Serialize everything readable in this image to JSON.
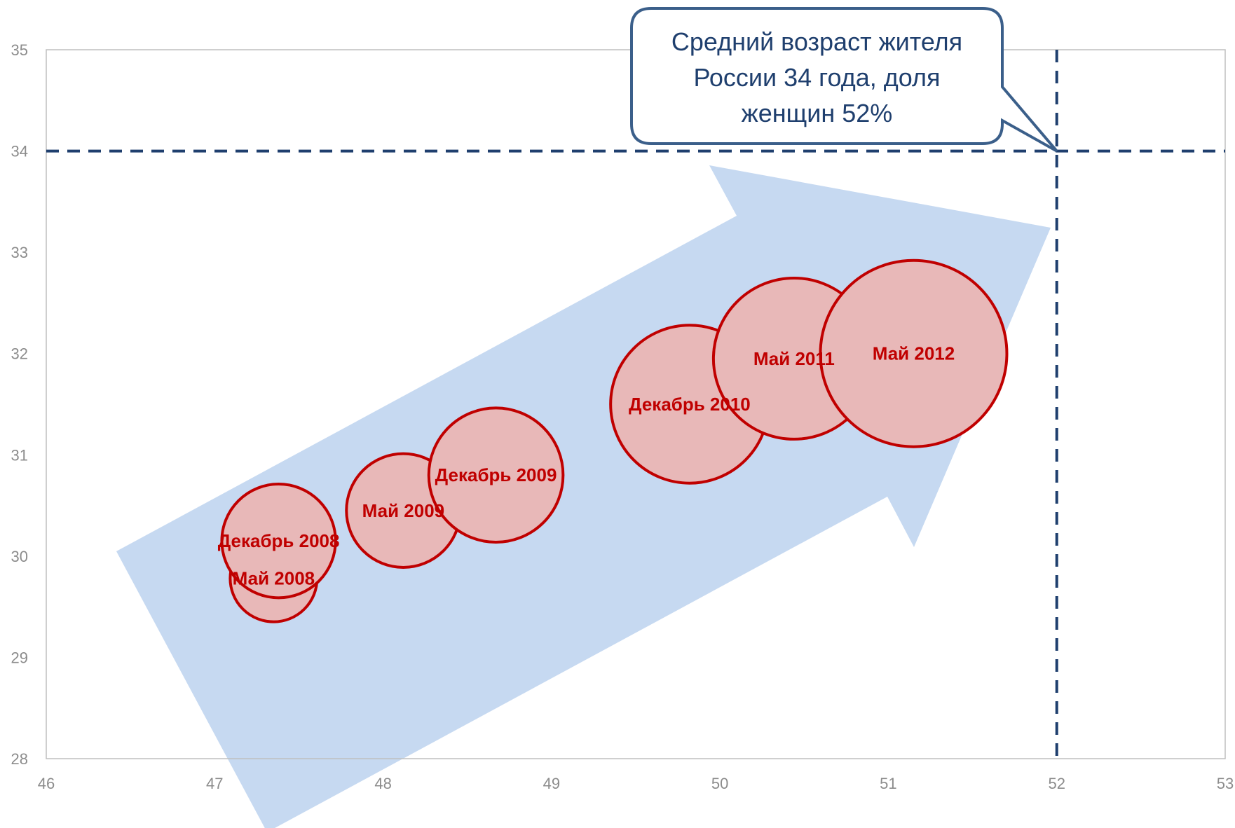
{
  "chart_data": {
    "type": "bubble",
    "xlim": [
      46,
      53
    ],
    "ylim": [
      28,
      35
    ],
    "x_ticks": [
      46,
      47,
      48,
      49,
      50,
      51,
      52,
      53
    ],
    "y_ticks": [
      28,
      29,
      30,
      31,
      32,
      33,
      34,
      35
    ],
    "grid": false,
    "series": [
      {
        "points": [
          {
            "label": "Май 2008",
            "x": 47.35,
            "y": 29.78,
            "size": 0.55
          },
          {
            "label": "Декабрь 2008",
            "x": 47.38,
            "y": 30.15,
            "size": 0.72
          },
          {
            "label": "Май 2009",
            "x": 48.12,
            "y": 30.45,
            "size": 0.72
          },
          {
            "label": "Декабрь 2009",
            "x": 48.67,
            "y": 30.8,
            "size": 0.85
          },
          {
            "label": "Декабрь 2010",
            "x": 49.82,
            "y": 31.5,
            "size": 1.0
          },
          {
            "label": "Май 2011",
            "x": 50.44,
            "y": 31.95,
            "size": 1.02
          },
          {
            "label": "Май 2012",
            "x": 51.15,
            "y": 32.0,
            "size": 1.18
          }
        ],
        "color": "#c00000",
        "fill": "#e8b8b8"
      }
    ],
    "reference_lines": [
      {
        "axis": "y",
        "value": 34,
        "style": "dashed",
        "color": "#1f3f6e"
      },
      {
        "axis": "x",
        "value": 52,
        "style": "dashed",
        "color": "#1f3f6e"
      }
    ],
    "annotation": {
      "lines": [
        "Средний возраст жителя",
        "России 34 года, доля",
        "женщин 52%"
      ],
      "points_to": {
        "x": 52,
        "y": 34
      }
    },
    "trend_arrow": {
      "color": "#c6d9f1"
    }
  }
}
